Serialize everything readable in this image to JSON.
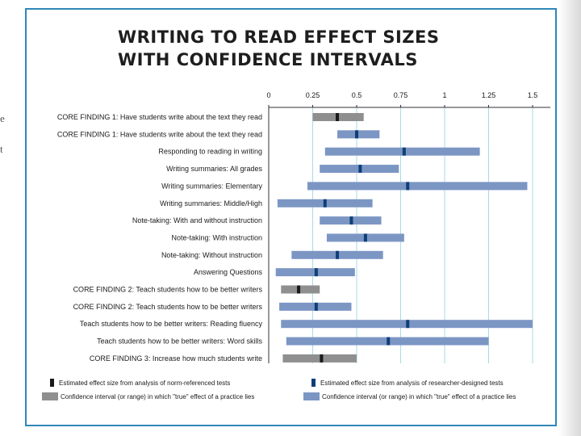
{
  "slide_fragment": [
    "e",
    "t"
  ],
  "chart_data": {
    "type": "range",
    "title_lines": [
      "WRITING TO READ EFFECT SIZES",
      "WITH CONFIDENCE INTERVALS"
    ],
    "xlim": [
      0,
      1.5
    ],
    "ticks": [
      0,
      0.25,
      0.5,
      0.75,
      1,
      1.25,
      1.5
    ],
    "tick_labels": [
      "0",
      "0.25",
      "0.5",
      "0.75",
      "1",
      "1.25",
      "1.5"
    ],
    "rows": [
      {
        "label": "CORE FINDING 1: Have students write about the text they read",
        "kind": "norm",
        "low": 0.25,
        "high": 0.54,
        "estimate": 0.39
      },
      {
        "label": "CORE FINDING 1: Have students write about the text they read",
        "kind": "researcher",
        "low": 0.39,
        "high": 0.63,
        "estimate": 0.5
      },
      {
        "label": "Responding to reading in writing",
        "kind": "researcher",
        "low": 0.32,
        "high": 1.2,
        "estimate": 0.77
      },
      {
        "label": "Writing summaries: All grades",
        "kind": "researcher",
        "low": 0.29,
        "high": 0.74,
        "estimate": 0.52
      },
      {
        "label": "Writing summaries: Elementary",
        "kind": "researcher",
        "low": 0.22,
        "high": 1.47,
        "estimate": 0.79
      },
      {
        "label": "Writing summaries: Middle/High",
        "kind": "researcher",
        "low": 0.05,
        "high": 0.59,
        "estimate": 0.32
      },
      {
        "label": "Note-taking: With and without instruction",
        "kind": "researcher",
        "low": 0.29,
        "high": 0.64,
        "estimate": 0.47
      },
      {
        "label": "Note-taking: With instruction",
        "kind": "researcher",
        "low": 0.33,
        "high": 0.77,
        "estimate": 0.55
      },
      {
        "label": "Note-taking: Without instruction",
        "kind": "researcher",
        "low": 0.13,
        "high": 0.65,
        "estimate": 0.39
      },
      {
        "label": "Answering Questions",
        "kind": "researcher",
        "low": 0.04,
        "high": 0.49,
        "estimate": 0.27
      },
      {
        "label": "CORE FINDING 2: Teach students how to be better writers",
        "kind": "norm",
        "low": 0.07,
        "high": 0.29,
        "estimate": 0.17
      },
      {
        "label": "CORE FINDING 2: Teach students how to be better writers",
        "kind": "researcher",
        "low": 0.06,
        "high": 0.47,
        "estimate": 0.27
      },
      {
        "label": "Teach students how to be better writers: Reading fluency",
        "kind": "researcher",
        "low": 0.07,
        "high": 1.5,
        "estimate": 0.79
      },
      {
        "label": "Teach students how to be better writers: Word skills",
        "kind": "researcher",
        "low": 0.1,
        "high": 1.25,
        "estimate": 0.68
      },
      {
        "label": "CORE FINDING 3: Increase how much students write",
        "kind": "norm",
        "low": 0.08,
        "high": 0.5,
        "estimate": 0.3
      }
    ],
    "legend": [
      {
        "kind": "norm",
        "shape": "estimate",
        "label": "Estimated effect size from analysis of norm-referenced tests"
      },
      {
        "kind": "researcher",
        "shape": "estimate",
        "label": "Estimated effect  size from analysis of researcher-designed tests"
      },
      {
        "kind": "norm",
        "shape": "interval",
        "label": "Confidence interval (or range) in which \"true\" effect of a practice lies"
      },
      {
        "kind": "researcher",
        "shape": "interval",
        "label": "Confidence interval (or range) in which \"true\" effect of a practice lies"
      }
    ],
    "colors": {
      "norm_interval": "#8f8f8f",
      "norm_estimate": "#1a1a1a",
      "researcher_interval": "#7c96c4",
      "researcher_estimate": "#0e3f78",
      "gridline": "#a9dbe6",
      "axis": "#333333"
    }
  }
}
